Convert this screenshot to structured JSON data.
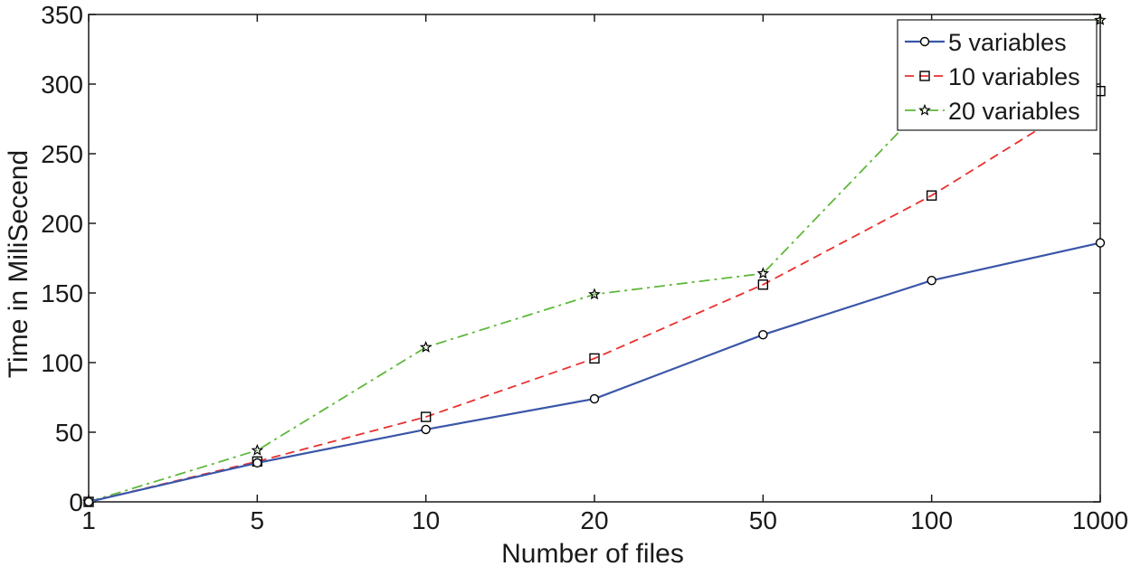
{
  "chart_data": {
    "type": "line",
    "title": "",
    "xlabel": "Number of files",
    "ylabel": "Time in MiliSecend",
    "categories": [
      "1",
      "5",
      "10",
      "20",
      "50",
      "100",
      "1000"
    ],
    "ylim": [
      0,
      350
    ],
    "yticks": [
      "0",
      "50",
      "100",
      "150",
      "200",
      "250",
      "300",
      "350"
    ],
    "grid": false,
    "legend_position": "top-right",
    "series": [
      {
        "name": "5 variables",
        "values": [
          0,
          28,
          52,
          74,
          120,
          159,
          186
        ],
        "color": "#3a56a8",
        "dash": "solid",
        "marker": "circle"
      },
      {
        "name": "10 variables",
        "values": [
          0,
          29,
          61,
          103,
          156,
          220,
          295
        ],
        "color": "#e8302e",
        "dash": "dashed",
        "marker": "square"
      },
      {
        "name": "20 variables",
        "values": [
          0,
          37,
          111,
          149,
          164,
          290,
          346
        ],
        "color": "#5fb83a",
        "dash": "dashdot",
        "marker": "star"
      }
    ]
  }
}
